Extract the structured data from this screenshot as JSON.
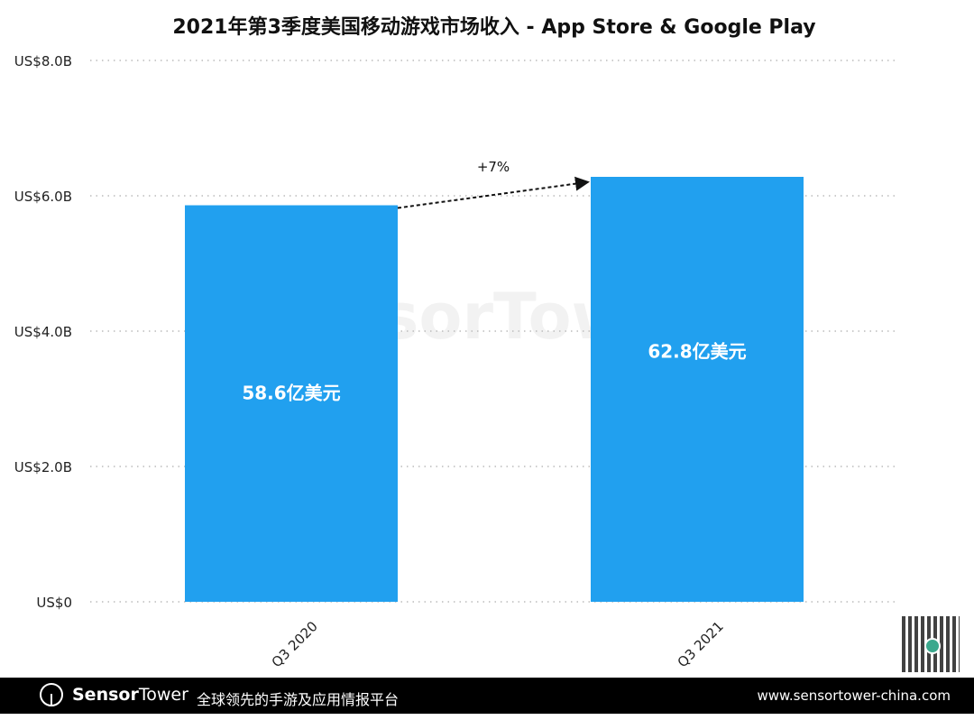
{
  "chart_data": {
    "type": "bar",
    "title": "2021年第3季度美国移动游戏市场收入 - App Store & Google Play",
    "categories": [
      "Q3 2020",
      "Q3 2021"
    ],
    "values": [
      5.86,
      6.28
    ],
    "data_labels": [
      "58.6亿美元",
      "62.8亿美元"
    ],
    "ylim": [
      0,
      8
    ],
    "yticks": [
      0,
      2,
      4,
      6,
      8
    ],
    "ytick_labels": [
      "US$0",
      "US$2.0B",
      "US$4.0B",
      "US$6.0B",
      "US$8.0B"
    ],
    "grid": "horizontal dotted",
    "annotation": "+7%",
    "bar_color": "#21a0ef"
  },
  "watermark": "SensorTower",
  "footer": {
    "brand_bold": "Sensor",
    "brand_light": "Tower",
    "slogan": "全球领先的手游及应用情报平台",
    "url": "www.sensortower-china.com"
  }
}
